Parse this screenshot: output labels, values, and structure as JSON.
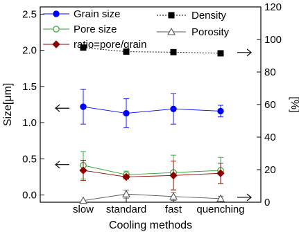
{
  "chart_data": {
    "type": "line",
    "categories": [
      "slow",
      "standard",
      "fast",
      "quenching"
    ],
    "xlabel": "Cooling methods",
    "ylabel_left": "Size[μm]",
    "ylabel_right": "[%]",
    "ylim_left": [
      -0.1,
      2.6
    ],
    "ylim_right": [
      0,
      120
    ],
    "yticks_left": [
      "0.0",
      "0.5",
      "1.0",
      "1.5",
      "2.0",
      "2.5"
    ],
    "yticks_right": [
      "0",
      "20",
      "40",
      "60",
      "80",
      "100",
      "120"
    ],
    "legend_left_placement": "top-left",
    "legend_right_placement": "top-right",
    "grid": false,
    "series": [
      {
        "name": "Grain size",
        "axis": "left",
        "color": "#0000ff",
        "marker": "circle-filled",
        "line": "solid",
        "values": [
          1.22,
          1.13,
          1.19,
          1.16
        ],
        "err": [
          0.24,
          0.2,
          0.21,
          0.08
        ]
      },
      {
        "name": "Pore size",
        "axis": "left",
        "color": "#2ca02c",
        "marker": "circle-open",
        "line": "solid",
        "values": [
          0.41,
          0.28,
          0.31,
          0.34
        ],
        "err": [
          0.19,
          0.05,
          0.24,
          0.18
        ]
      },
      {
        "name": "ratio=pore/grain",
        "axis": "left",
        "color": "#8b0000",
        "marker": "diamond-filled",
        "line": "solid",
        "values": [
          0.34,
          0.25,
          0.27,
          0.3
        ],
        "err": [
          0.14,
          0.03,
          0.2,
          0.14
        ]
      },
      {
        "name": "Density",
        "axis": "right",
        "color": "#000000",
        "marker": "square-filled",
        "line": "dotted",
        "values": [
          95,
          92.5,
          92.2,
          91.5
        ],
        "err": [
          1.5,
          1.5,
          1.5,
          1.5
        ]
      },
      {
        "name": "Porosity",
        "axis": "right",
        "color": "#555555",
        "marker": "triangle-open",
        "line": "solid",
        "values": [
          1.0,
          5.0,
          3.5,
          2.2
        ],
        "err": [
          0,
          2.5,
          2.5,
          1.5
        ]
      }
    ],
    "arrows": [
      {
        "direction": "left",
        "axis": "left",
        "y": 1.2
      },
      {
        "direction": "left",
        "axis": "left",
        "y": 0.42
      },
      {
        "direction": "right",
        "axis": "right",
        "y": 92
      },
      {
        "direction": "right",
        "axis": "right",
        "y": 3
      }
    ]
  }
}
